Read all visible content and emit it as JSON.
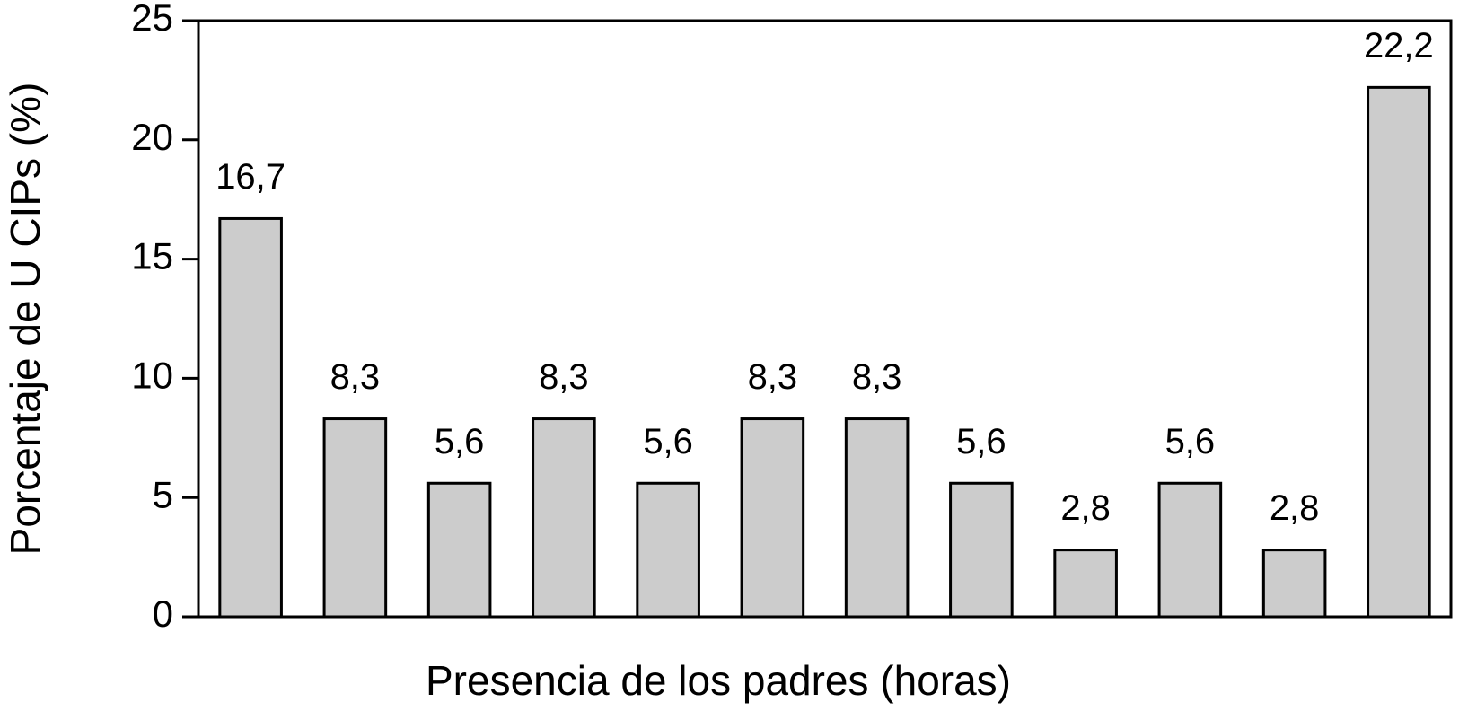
{
  "chart_data": {
    "type": "bar",
    "x_label": "Presencia de los padres (horas)",
    "y_label": "Porcentaje de U CIPs (%)",
    "categories": [
      null,
      null,
      null,
      null,
      null,
      null,
      null,
      null,
      null,
      null,
      null,
      null
    ],
    "values": [
      16.7,
      8.3,
      5.6,
      8.3,
      5.6,
      8.3,
      8.3,
      5.6,
      2.8,
      5.6,
      2.8,
      22.2
    ],
    "value_labels": [
      "16,7",
      "8,3",
      "5,6",
      "8,3",
      "5,6",
      "8,3",
      "8,3",
      "5,6",
      "2,8",
      "5,6",
      "2,8",
      "22,2"
    ],
    "color": "#cccccc",
    "ylim": [
      0,
      25
    ],
    "yticks": [
      0,
      5,
      10,
      15,
      20,
      25
    ],
    "grid": false
  }
}
